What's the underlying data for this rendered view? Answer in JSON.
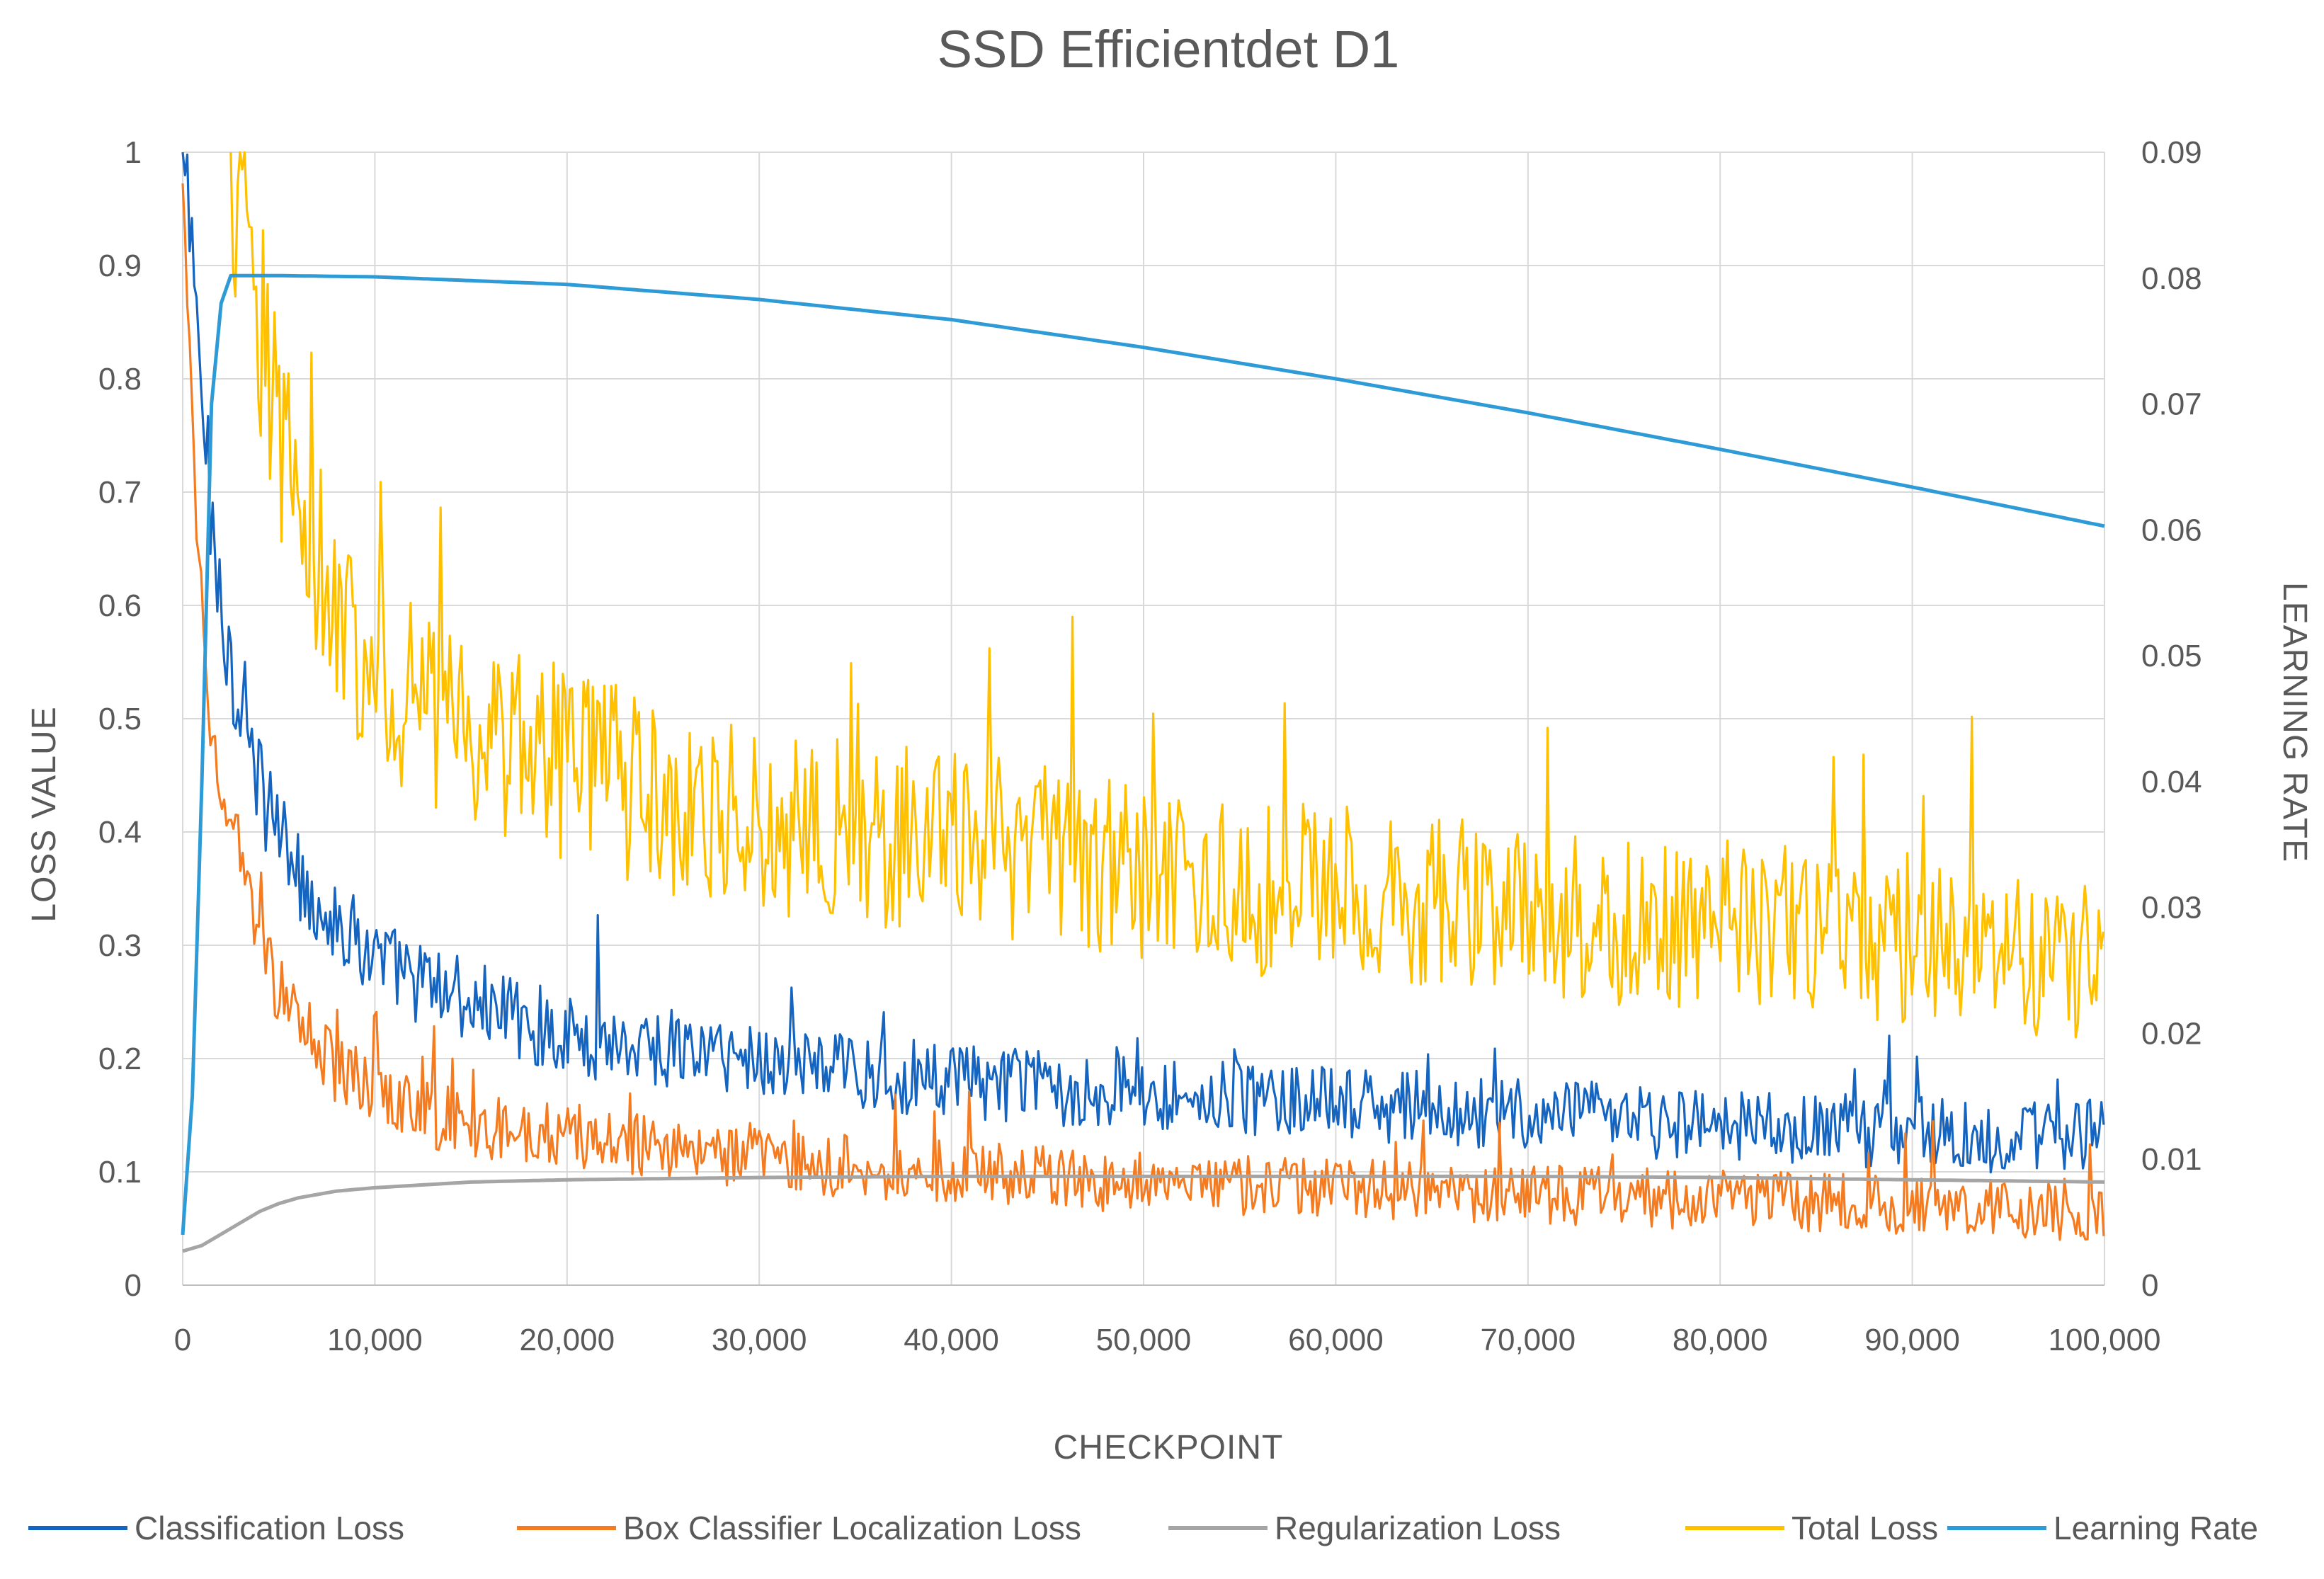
{
  "chart_data": {
    "type": "line",
    "title": "SSD Efficientdet D1",
    "xlabel": "CHECKPOINT",
    "ylabel": "LOSS VALUE",
    "y2label": "LEARNING RATE",
    "xlim": [
      0,
      100000
    ],
    "ylim": [
      0,
      1
    ],
    "y2lim": [
      0,
      0.09
    ],
    "grid": true,
    "legend_position": "bottom",
    "x_ticks": [
      0,
      10000,
      20000,
      30000,
      40000,
      50000,
      60000,
      70000,
      80000,
      90000,
      100000
    ],
    "x_tick_labels": [
      "0",
      "10,000",
      "20,000",
      "30,000",
      "40,000",
      "50,000",
      "60,000",
      "70,000",
      "80,000",
      "90,000",
      "100,000"
    ],
    "y_ticks": [
      0,
      0.1,
      0.2,
      0.3,
      0.4,
      0.5,
      0.6,
      0.7,
      0.8,
      0.9,
      1
    ],
    "y_tick_labels": [
      "0",
      "0.1",
      "0.2",
      "0.3",
      "0.4",
      "0.5",
      "0.6",
      "0.7",
      "0.8",
      "0.9",
      "1"
    ],
    "y2_ticks": [
      0,
      0.01,
      0.02,
      0.03,
      0.04,
      0.05,
      0.06,
      0.07,
      0.08,
      0.09
    ],
    "y2_tick_labels": [
      "0",
      "0.01",
      "0.02",
      "0.03",
      "0.04",
      "0.05",
      "0.06",
      "0.07",
      "0.08",
      "0.09"
    ],
    "series": [
      {
        "name": "Classification Loss",
        "color": "#1565c0",
        "axis": "left",
        "x": [
          0,
          500,
          1000,
          1500,
          2000,
          3000,
          4000,
          5000,
          6000,
          7000,
          8000,
          10000,
          12000,
          15000,
          20000,
          25000,
          30000,
          35000,
          40000,
          45000,
          50000,
          55000,
          60000,
          65000,
          70000,
          75000,
          80000,
          85000,
          90000,
          95000,
          100000
        ],
        "y": [
          1.0,
          0.9,
          0.78,
          0.68,
          0.6,
          0.5,
          0.44,
          0.4,
          0.36,
          0.34,
          0.32,
          0.29,
          0.27,
          0.25,
          0.22,
          0.21,
          0.2,
          0.19,
          0.18,
          0.175,
          0.17,
          0.165,
          0.16,
          0.155,
          0.15,
          0.145,
          0.14,
          0.138,
          0.135,
          0.13,
          0.13
        ],
        "noise": 0.045
      },
      {
        "name": "Box Classifier Localization Loss",
        "color": "#f47b20",
        "axis": "left",
        "x": [
          0,
          500,
          1000,
          1500,
          2000,
          3000,
          4000,
          5000,
          6000,
          7000,
          8000,
          10000,
          12000,
          15000,
          20000,
          25000,
          30000,
          35000,
          40000,
          45000,
          50000,
          55000,
          60000,
          65000,
          70000,
          75000,
          80000,
          85000,
          90000,
          95000,
          100000
        ],
        "y": [
          0.95,
          0.75,
          0.6,
          0.5,
          0.45,
          0.37,
          0.3,
          0.26,
          0.23,
          0.21,
          0.19,
          0.17,
          0.155,
          0.14,
          0.13,
          0.12,
          0.11,
          0.105,
          0.1,
          0.095,
          0.09,
          0.088,
          0.085,
          0.083,
          0.08,
          0.078,
          0.075,
          0.072,
          0.07,
          0.068,
          0.065
        ],
        "noise": 0.04
      },
      {
        "name": "Regularization Loss",
        "color": "#a5a5a5",
        "axis": "left",
        "x": [
          0,
          1000,
          2000,
          3000,
          4000,
          5000,
          6000,
          8000,
          10000,
          12000,
          15000,
          20000,
          30000,
          40000,
          50000,
          60000,
          70000,
          80000,
          90000,
          100000
        ],
        "y": [
          0.03,
          0.035,
          0.045,
          0.055,
          0.065,
          0.072,
          0.077,
          0.083,
          0.086,
          0.088,
          0.091,
          0.093,
          0.095,
          0.096,
          0.096,
          0.096,
          0.096,
          0.095,
          0.093,
          0.091
        ],
        "noise": 0.0
      },
      {
        "name": "Total Loss",
        "color": "#ffc000",
        "axis": "left",
        "x": [
          2500,
          3000,
          4000,
          5000,
          6000,
          7000,
          8000,
          10000,
          12000,
          15000,
          20000,
          25000,
          30000,
          35000,
          40000,
          45000,
          50000,
          55000,
          60000,
          65000,
          70000,
          75000,
          80000,
          85000,
          90000,
          95000,
          100000
        ],
        "y": [
          1.0,
          0.95,
          0.85,
          0.75,
          0.7,
          0.66,
          0.6,
          0.54,
          0.52,
          0.49,
          0.46,
          0.43,
          0.41,
          0.4,
          0.39,
          0.38,
          0.36,
          0.35,
          0.35,
          0.34,
          0.33,
          0.32,
          0.32,
          0.31,
          0.3,
          0.29,
          0.28
        ],
        "noise": 0.085
      },
      {
        "name": "Learning Rate",
        "color": "#2e9bd6",
        "axis": "right",
        "x": [
          0,
          500,
          1000,
          1500,
          2000,
          2500,
          5000,
          10000,
          20000,
          30000,
          40000,
          50000,
          60000,
          70000,
          80000,
          90000,
          100000
        ],
        "y": [
          0.004,
          0.015,
          0.04,
          0.07,
          0.078,
          0.0802,
          0.0802,
          0.0801,
          0.0795,
          0.0783,
          0.0767,
          0.0745,
          0.072,
          0.0693,
          0.0664,
          0.0634,
          0.0603
        ],
        "noise": 0.0
      }
    ]
  }
}
